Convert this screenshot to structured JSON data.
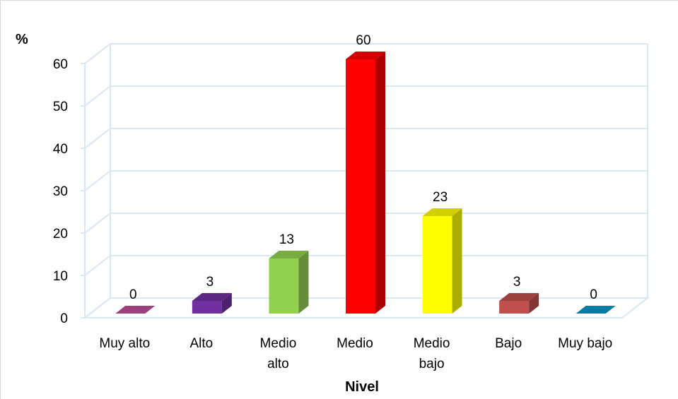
{
  "chart_data": {
    "type": "bar",
    "categories": [
      [
        "Muy alto"
      ],
      [
        "Alto"
      ],
      [
        "Medio",
        "alto"
      ],
      [
        "Medio"
      ],
      [
        "Medio",
        "bajo"
      ],
      [
        "Bajo"
      ],
      [
        "Muy bajo"
      ]
    ],
    "values": [
      0,
      3,
      13,
      60,
      23,
      3,
      0
    ],
    "data_labels": [
      "0",
      "3",
      "13",
      "60",
      "23",
      "3",
      "0"
    ],
    "colors": [
      "#c0509b",
      "#7030a0",
      "#92d050",
      "#ff0000",
      "#ffff00",
      "#c0504d",
      "#0099cc"
    ],
    "ylabel": "%",
    "xlabel": "Nivel",
    "ylim": [
      0,
      60
    ],
    "yticks": [
      "0",
      "10",
      "20",
      "30",
      "40",
      "50",
      "60"
    ],
    "grid": true,
    "style": "3d-column"
  }
}
